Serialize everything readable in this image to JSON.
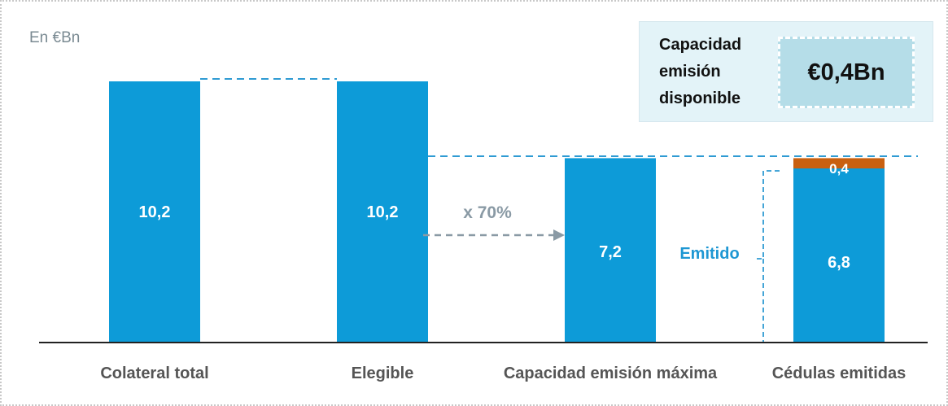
{
  "unit_label": "En €Bn",
  "callout": {
    "label_lines": [
      "Capacidad",
      "emisión",
      "disponible"
    ],
    "value": "€0,4Bn"
  },
  "colors": {
    "bar": "#0d9bd8",
    "highlight": "#c96010",
    "guide_line": "#2f9bd3",
    "arrow": "#8a9aa5",
    "label_blue": "#1e97d3",
    "axis": "#222222"
  },
  "chart_data": {
    "type": "bar",
    "categories": [
      "Colateral total",
      "Elegible",
      "Capacidad emisión máxima",
      "Cédulas emitidas"
    ],
    "series": [
      {
        "values": [
          10.2,
          10.2,
          7.2,
          6.8
        ]
      },
      {
        "values": [
          0,
          0,
          0,
          0.4
        ]
      }
    ],
    "data_labels": [
      "10,2",
      "10,2",
      "7,2",
      "6,8",
      "0,4"
    ],
    "ylim": [
      0,
      10.2
    ],
    "annotations": {
      "ratio": "x 70%",
      "issued": "Emitido"
    }
  }
}
